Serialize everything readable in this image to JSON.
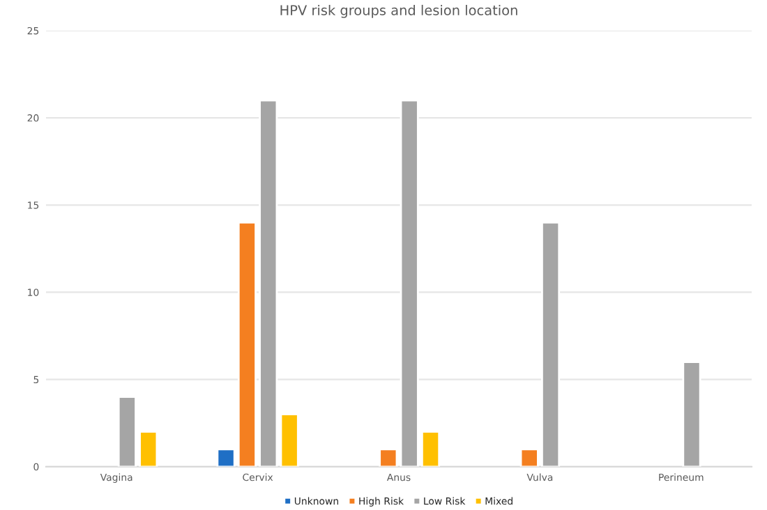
{
  "chart_data": {
    "type": "bar",
    "title": "HPV risk groups and lesion location",
    "categories": [
      "Vagina",
      "Cervix",
      "Anus",
      "Vulva",
      "Perineum"
    ],
    "series": [
      {
        "name": "Unknown",
        "color": "#1f6fc5",
        "values": [
          null,
          1,
          null,
          null,
          null
        ]
      },
      {
        "name": "High Risk",
        "color": "#f47f20",
        "values": [
          null,
          14,
          1,
          1,
          null
        ]
      },
      {
        "name": "Low Risk",
        "color": "#a5a5a5",
        "values": [
          4,
          21,
          21,
          14,
          6
        ]
      },
      {
        "name": "Mixed",
        "color": "#ffc000",
        "values": [
          2,
          3,
          2,
          null,
          null
        ]
      }
    ],
    "ylim": [
      0,
      25
    ],
    "yticks": [
      0,
      5,
      10,
      15,
      20,
      25
    ],
    "grid": "y",
    "legend": "bottom"
  }
}
